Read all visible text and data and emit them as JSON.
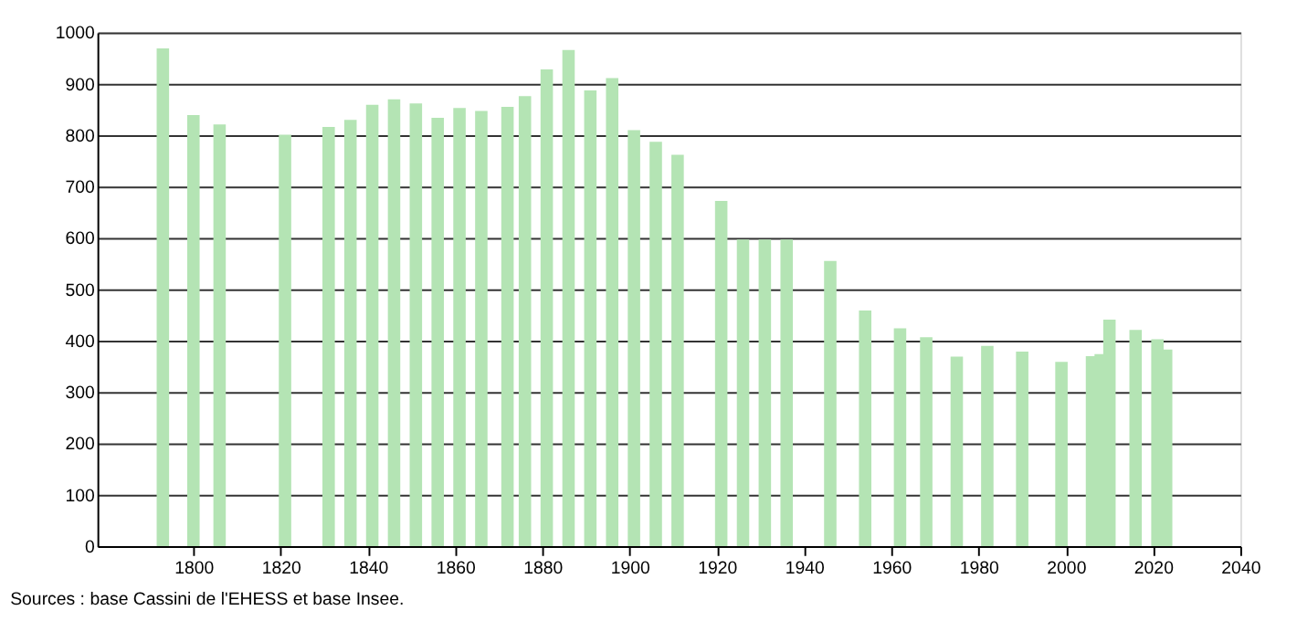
{
  "chart_data": {
    "type": "bar",
    "x": [
      1793,
      1800,
      1806,
      1821,
      1831,
      1836,
      1841,
      1846,
      1851,
      1856,
      1861,
      1866,
      1872,
      1876,
      1881,
      1886,
      1891,
      1896,
      1901,
      1906,
      1911,
      1921,
      1926,
      1931,
      1936,
      1946,
      1954,
      1962,
      1968,
      1975,
      1982,
      1990,
      1999,
      2006,
      2008,
      2010,
      2016,
      2021,
      2023
    ],
    "values": [
      969,
      839,
      821,
      801,
      816,
      830,
      859,
      870,
      862,
      834,
      853,
      847,
      855,
      876,
      928,
      966,
      887,
      911,
      810,
      787,
      762,
      672,
      597,
      597,
      597,
      555,
      459,
      424,
      407,
      369,
      390,
      379,
      359,
      370,
      374,
      441,
      421,
      403,
      383
    ],
    "color": "#b4e4b4",
    "xlim": [
      1778,
      2040
    ],
    "xticks": [
      1800,
      1820,
      1840,
      1860,
      1880,
      1900,
      1920,
      1940,
      1960,
      1980,
      2000,
      2020,
      2040
    ],
    "ylim": [
      0,
      1000
    ],
    "yticks": [
      0,
      100,
      200,
      300,
      400,
      500,
      600,
      700,
      800,
      900,
      1000
    ],
    "grid": "y",
    "annotations": [
      "Sources : base Cassini de l'EHESS et base Insee."
    ]
  }
}
